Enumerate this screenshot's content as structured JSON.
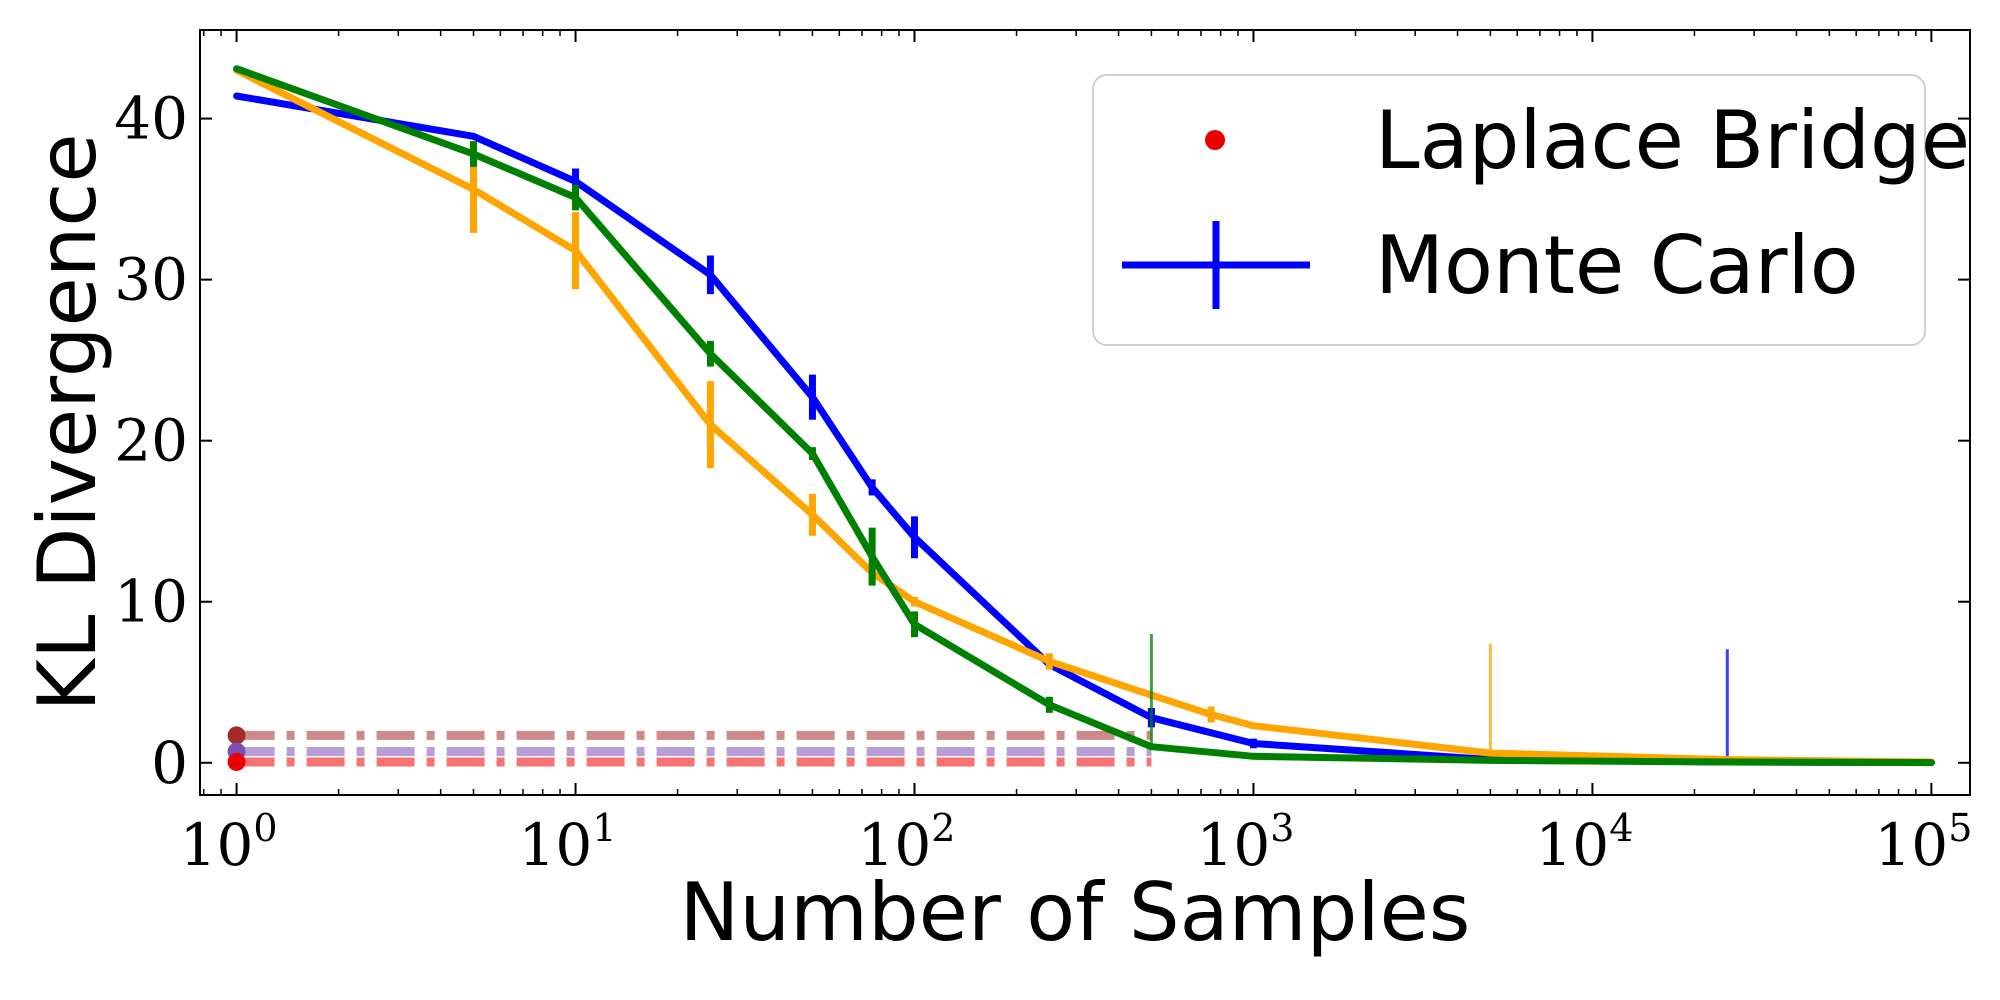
{
  "chart_data": {
    "type": "line",
    "title": "",
    "xlabel": "Number of Samples",
    "ylabel": "KL Divergence",
    "xscale": "log",
    "xlim": [
      0.78,
      130000
    ],
    "ylim": [
      -2,
      45.5
    ],
    "grid": false,
    "legend_position": "top-right",
    "x_ticks": [
      {
        "value": 1,
        "base": "10",
        "exp": "0"
      },
      {
        "value": 10,
        "base": "10",
        "exp": "1"
      },
      {
        "value": 100,
        "base": "10",
        "exp": "2"
      },
      {
        "value": 1000,
        "base": "10",
        "exp": "3"
      },
      {
        "value": 10000,
        "base": "10",
        "exp": "4"
      },
      {
        "value": 100000,
        "base": "10",
        "exp": "5"
      }
    ],
    "y_ticks": [
      {
        "value": 0,
        "label": "0"
      },
      {
        "value": 10,
        "label": "10"
      },
      {
        "value": 20,
        "label": "20"
      },
      {
        "value": 30,
        "label": "30"
      },
      {
        "value": 40,
        "label": "40"
      }
    ],
    "legend": [
      {
        "label": "Laplace Bridge",
        "marker": "dot",
        "color": "#ee0000"
      },
      {
        "label": "Monte Carlo",
        "marker": "errorbar",
        "color": "#0000ff"
      }
    ],
    "monte_carlo_series": [
      {
        "color": "#0000ff",
        "x": [
          1,
          5,
          10,
          25,
          50,
          75,
          100,
          250,
          500,
          1000,
          5000,
          25000,
          100000
        ],
        "y": [
          41.4,
          38.9,
          36.1,
          30.3,
          22.7,
          17.1,
          14.0,
          6.1,
          2.8,
          1.2,
          0.2,
          0.05,
          0.02
        ],
        "err": [
          0.0,
          0.0,
          0.8,
          1.2,
          1.4,
          0.5,
          1.3,
          0.3,
          0.6,
          0.3,
          0.0,
          3.5,
          0.0
        ]
      },
      {
        "color": "#ffa500",
        "x": [
          1,
          5,
          10,
          25,
          50,
          75,
          100,
          250,
          500,
          750,
          1000,
          5000,
          25000,
          100000
        ],
        "y": [
          43.0,
          35.6,
          31.8,
          21.0,
          15.4,
          11.8,
          10.0,
          6.3,
          4.2,
          3.0,
          2.3,
          0.6,
          0.2,
          0.05
        ],
        "err": [
          0.0,
          2.7,
          2.4,
          2.7,
          1.3,
          0.5,
          0.3,
          0.5,
          0.2,
          0.5,
          0.2,
          3.4,
          0.1,
          0.0
        ]
      },
      {
        "color": "#008000",
        "x": [
          1,
          5,
          10,
          25,
          50,
          75,
          100,
          250,
          500,
          1000,
          5000,
          25000,
          100000
        ],
        "y": [
          43.1,
          37.8,
          35.1,
          25.4,
          19.2,
          12.8,
          8.6,
          3.6,
          1.0,
          0.4,
          0.15,
          0.05,
          0.01
        ],
        "err": [
          0.0,
          0.8,
          0.8,
          0.8,
          0.4,
          1.8,
          0.8,
          0.5,
          3.5,
          0.2,
          0.0,
          0.0,
          0.0
        ]
      }
    ],
    "laplace_bridge_series": [
      {
        "color": "#a52a2a",
        "y": 1.7
      },
      {
        "color": "#7b4fb5",
        "y": 0.7
      },
      {
        "color": "#ee0000",
        "y": 0.05
      }
    ],
    "laplace_bridge_line_x": [
      1,
      500
    ]
  }
}
